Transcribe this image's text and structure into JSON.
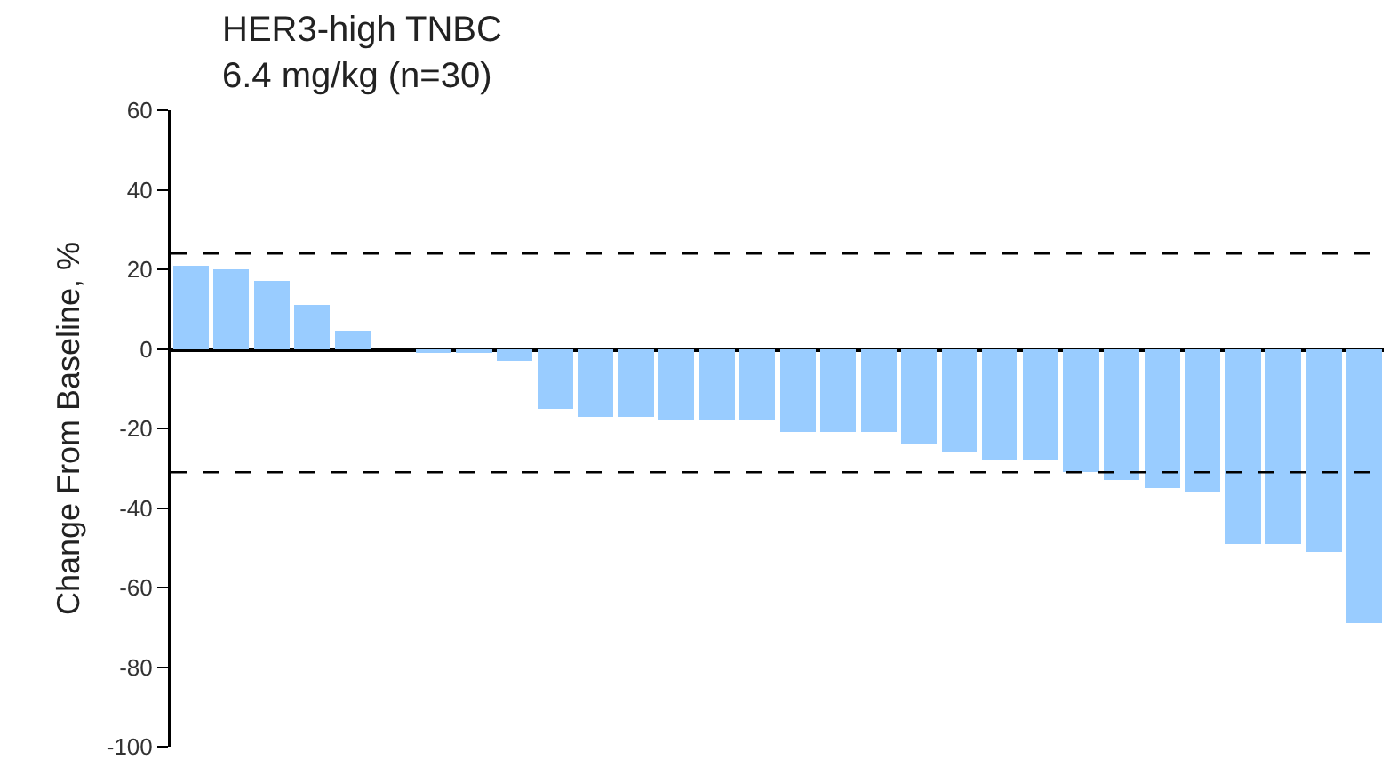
{
  "chart_data": {
    "type": "bar",
    "title": "HER3-high TNBC",
    "subtitle": "6.4 mg/kg (n=30)",
    "ylabel": "Change From Baseline, %",
    "categories": [
      null,
      null,
      null,
      null,
      null,
      null,
      null,
      null,
      null,
      null,
      null,
      null,
      null,
      null,
      null,
      null,
      null,
      null,
      null,
      null,
      null,
      null,
      null,
      null,
      null,
      null,
      null,
      null,
      null,
      null
    ],
    "values": [
      21,
      20,
      17,
      11,
      4.5,
      0,
      -1,
      -1,
      -3,
      -15,
      -17,
      -17,
      -18,
      -18,
      -18,
      -21,
      -21,
      -21,
      -24,
      -26,
      -28,
      -28,
      -31,
      -33,
      -35,
      -36,
      -49,
      -49,
      -51,
      -69
    ],
    "color": "#99ccff",
    "ylim": [
      -100,
      60
    ],
    "yticks": [
      -100,
      -80,
      -60,
      -40,
      -20,
      0,
      20,
      40,
      60
    ],
    "ref_lines": [
      {
        "axis": "y",
        "value": 24,
        "line_style": "dashed",
        "color": "#000000"
      },
      {
        "axis": "y",
        "value": -31,
        "line_style": "dashed",
        "color": "#000000"
      }
    ],
    "legend": false,
    "tick_labels": "y"
  }
}
